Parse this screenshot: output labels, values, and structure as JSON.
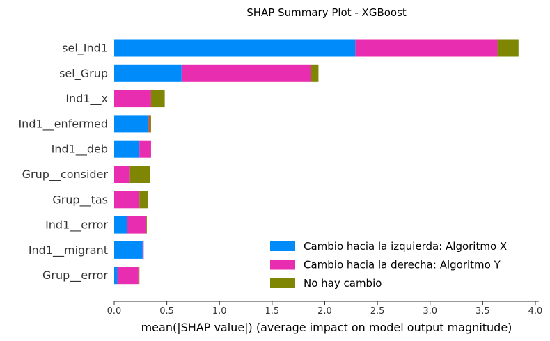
{
  "chart_data": {
    "type": "bar",
    "orientation": "horizontal",
    "stacked": true,
    "title": "SHAP Summary Plot - XGBoost",
    "xlabel": "mean(|SHAP value|) (average impact on model output magnitude)",
    "ylabel": "",
    "xlim": [
      0,
      4.05
    ],
    "xticks": [
      "0.0",
      "0.5",
      "1.0",
      "1.5",
      "2.0",
      "2.5",
      "3.0",
      "3.5",
      "4.0"
    ],
    "xtick_values": [
      0,
      0.5,
      1.0,
      1.5,
      2.0,
      2.5,
      3.0,
      3.5,
      4.0
    ],
    "grid": false,
    "legend_position": "lower-right",
    "categories": [
      "sel_Ind1",
      "sel_Grup",
      "Ind1__x",
      "Ind1__enfermed",
      "Ind1__deb",
      "Grup__consider",
      "Grup__tas",
      "Ind1__error",
      "Ind1__migrant",
      "Grup__error"
    ],
    "series": [
      {
        "name": "Cambio hacia la izquierda: Algoritmo X",
        "color": "#008bfb",
        "values": [
          2.29,
          0.64,
          0.0,
          0.32,
          0.24,
          0.0,
          0.0,
          0.12,
          0.27,
          0.03
        ]
      },
      {
        "name": "Cambio hacia la derecha: Algoritmo Y",
        "color": "#e82db0",
        "values": [
          1.35,
          1.23,
          0.35,
          0.01,
          0.11,
          0.15,
          0.24,
          0.18,
          0.01,
          0.2
        ]
      },
      {
        "name": "No hay cambio",
        "color": "#7f8603",
        "values": [
          0.2,
          0.07,
          0.13,
          0.02,
          0.0,
          0.19,
          0.08,
          0.01,
          0.0,
          0.01
        ]
      }
    ]
  }
}
